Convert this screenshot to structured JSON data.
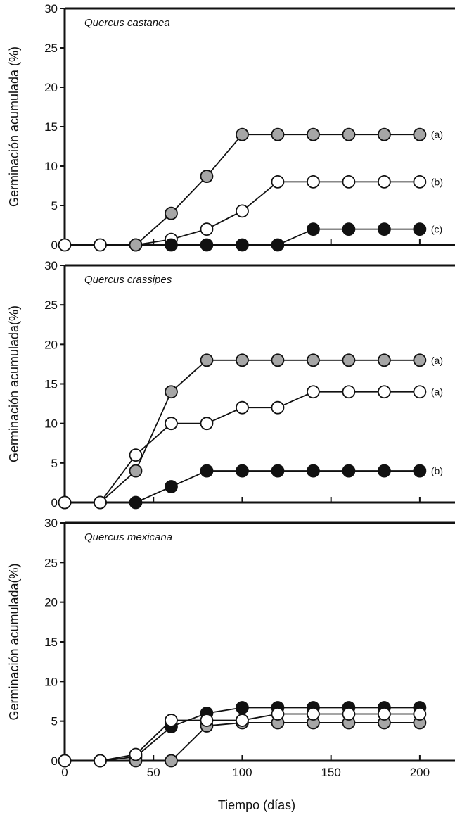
{
  "chart_data": [
    {
      "type": "line",
      "title": "Quercus castanea",
      "ylabel": "Germinación acumulada (%)",
      "xlabel": "",
      "ylim": [
        0,
        30
      ],
      "xlim": [
        0,
        225
      ],
      "yticks": [
        0,
        5,
        10,
        15,
        20,
        25,
        30
      ],
      "xticks": [
        0,
        50,
        100,
        150,
        200
      ],
      "show_xtick_labels": false,
      "series": [
        {
          "color": "#ffffff",
          "end_label": "(b)",
          "x": [
            0,
            20,
            40,
            60,
            80,
            100,
            120,
            140,
            160,
            180,
            200
          ],
          "y": [
            0,
            0,
            0,
            0.7,
            2,
            4.3,
            8,
            8,
            8,
            8,
            8
          ]
        },
        {
          "color": "#111111",
          "end_label": "(c)",
          "x": [
            60,
            80,
            100,
            120,
            140,
            160,
            180,
            200
          ],
          "y": [
            0,
            0,
            0,
            0,
            2,
            2,
            2,
            2
          ]
        },
        {
          "color": "#a6a6a6",
          "end_label": "(a)",
          "x": [
            40,
            60,
            80,
            100,
            120,
            140,
            160,
            180,
            200
          ],
          "y": [
            0,
            4,
            8.7,
            14,
            14,
            14,
            14,
            14,
            14
          ]
        }
      ]
    },
    {
      "type": "line",
      "title": "Quercus crassipes",
      "ylabel": "Germinación acumulada(%)",
      "xlabel": "",
      "ylim": [
        0,
        30
      ],
      "xlim": [
        0,
        225
      ],
      "yticks": [
        0,
        5,
        10,
        15,
        20,
        25,
        30
      ],
      "xticks": [
        0,
        50,
        100,
        150,
        200
      ],
      "show_xtick_labels": false,
      "series": [
        {
          "color": "#a6a6a6",
          "end_label": "(a)",
          "x": [
            0,
            20,
            40,
            60,
            80,
            100,
            120,
            140,
            160,
            180,
            200
          ],
          "y": [
            0,
            0,
            4,
            14,
            18,
            18,
            18,
            18,
            18,
            18,
            18
          ]
        },
        {
          "color": "#ffffff",
          "end_label": "(a)",
          "x": [
            0,
            20,
            40,
            60,
            80,
            100,
            120,
            140,
            160,
            180,
            200
          ],
          "y": [
            0,
            0,
            6,
            10,
            10,
            12,
            12,
            14,
            14,
            14,
            14
          ]
        },
        {
          "color": "#111111",
          "end_label": "(b)",
          "x": [
            40,
            60,
            80,
            100,
            120,
            140,
            160,
            180,
            200
          ],
          "y": [
            0,
            2,
            4,
            4,
            4,
            4,
            4,
            4,
            4
          ]
        }
      ]
    },
    {
      "type": "line",
      "title": "Quercus mexicana",
      "ylabel": "Germinación acumulada(%)",
      "xlabel": "Tiempo (días)",
      "ylim": [
        0,
        30
      ],
      "xlim": [
        0,
        225
      ],
      "yticks": [
        0,
        5,
        10,
        15,
        20,
        25,
        30
      ],
      "xticks": [
        0,
        50,
        100,
        150,
        200
      ],
      "show_xtick_labels": true,
      "series": [
        {
          "color": "#111111",
          "end_label": "",
          "x": [
            0,
            20,
            40,
            60,
            80,
            100,
            120,
            140,
            160,
            180,
            200
          ],
          "y": [
            0,
            0,
            0.5,
            4.3,
            6,
            6.7,
            6.7,
            6.7,
            6.7,
            6.7,
            6.7
          ]
        },
        {
          "color": "#a6a6a6",
          "end_label": "",
          "x": [
            40,
            60,
            80,
            100,
            120,
            140,
            160,
            180,
            200
          ],
          "y": [
            0,
            0,
            4.4,
            4.8,
            4.8,
            4.8,
            4.8,
            4.8,
            4.8
          ]
        },
        {
          "color": "#ffffff",
          "end_label": "",
          "x": [
            0,
            20,
            40,
            60,
            80,
            100,
            120,
            140,
            160,
            180,
            200
          ],
          "y": [
            0,
            0,
            0.8,
            5.1,
            5.1,
            5.1,
            5.9,
            5.9,
            5.9,
            5.9,
            5.9
          ]
        }
      ]
    }
  ]
}
